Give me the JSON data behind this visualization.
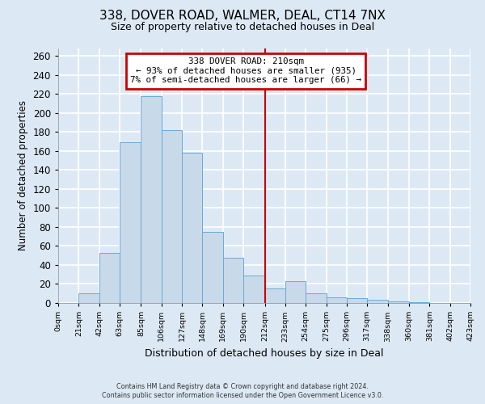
{
  "title": "338, DOVER ROAD, WALMER, DEAL, CT14 7NX",
  "subtitle": "Size of property relative to detached houses in Deal",
  "xlabel": "Distribution of detached houses by size in Deal",
  "ylabel": "Number of detached properties",
  "bin_labels": [
    "0sqm",
    "21sqm",
    "42sqm",
    "63sqm",
    "85sqm",
    "106sqm",
    "127sqm",
    "148sqm",
    "169sqm",
    "190sqm",
    "212sqm",
    "233sqm",
    "254sqm",
    "275sqm",
    "296sqm",
    "317sqm",
    "338sqm",
    "360sqm",
    "381sqm",
    "402sqm",
    "423sqm"
  ],
  "bin_edges": [
    0,
    21,
    42,
    63,
    85,
    106,
    127,
    148,
    169,
    190,
    212,
    233,
    254,
    275,
    296,
    317,
    338,
    360,
    381,
    402,
    423
  ],
  "bar_heights": [
    0,
    10,
    53,
    169,
    218,
    182,
    158,
    75,
    48,
    29,
    15,
    23,
    10,
    6,
    5,
    3,
    2,
    1,
    0,
    0
  ],
  "bar_color": "#c8d9ea",
  "bar_edge_color": "#6aaad4",
  "property_line_x": 212,
  "ylim": [
    0,
    268
  ],
  "yticks": [
    0,
    20,
    40,
    60,
    80,
    100,
    120,
    140,
    160,
    180,
    200,
    220,
    240,
    260
  ],
  "annotation_title": "338 DOVER ROAD: 210sqm",
  "annotation_line1": "← 93% of detached houses are smaller (935)",
  "annotation_line2": "7% of semi-detached houses are larger (66) →",
  "annotation_box_color": "#ffffff",
  "annotation_box_edge": "#cc0000",
  "footer_line1": "Contains HM Land Registry data © Crown copyright and database right 2024.",
  "footer_line2": "Contains public sector information licensed under the Open Government Licence v3.0.",
  "bg_color": "#dce9f5",
  "plot_bg_color": "#dce9f5",
  "grid_color": "#ffffff",
  "vline_color": "#cc0000",
  "title_fontsize": 11,
  "subtitle_fontsize": 9
}
